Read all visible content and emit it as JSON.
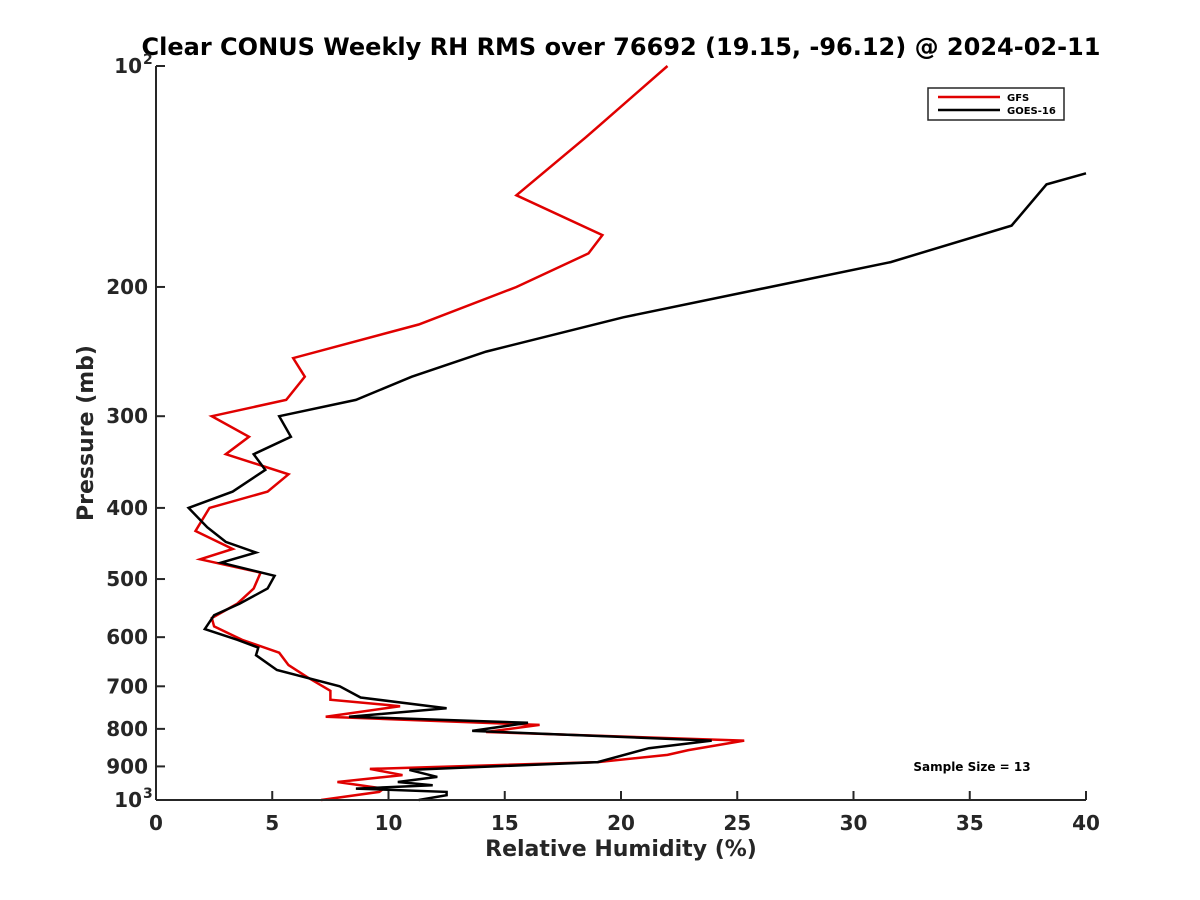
{
  "chart_data": {
    "type": "line",
    "title": "Clear CONUS Weekly RH RMS over 76692 (19.15, -96.12) @ 2024-02-11",
    "xlabel": "Relative Humidity (%)",
    "ylabel": "Pressure (mb)",
    "xlim": [
      0,
      40
    ],
    "ylim": [
      100,
      1000
    ],
    "yscale": "log",
    "yreversed": true,
    "x_ticks": [
      0,
      5,
      10,
      15,
      20,
      25,
      30,
      35,
      40
    ],
    "y_ticks": [
      {
        "value": 100,
        "label": "10",
        "sup": "2"
      },
      {
        "value": 200,
        "label": "200"
      },
      {
        "value": 300,
        "label": "300"
      },
      {
        "value": 400,
        "label": "400"
      },
      {
        "value": 500,
        "label": "500"
      },
      {
        "value": 600,
        "label": "600"
      },
      {
        "value": 700,
        "label": "700"
      },
      {
        "value": 800,
        "label": "800"
      },
      {
        "value": 900,
        "label": "900"
      },
      {
        "value": 1000,
        "label": "10",
        "sup": "3"
      }
    ],
    "legend_position": "top-right",
    "annotation": "Sample Size = 13",
    "series": [
      {
        "name": "GFS",
        "color": "#e00000",
        "points": [
          [
            22.0,
            100
          ],
          [
            18.5,
            125
          ],
          [
            15.5,
            150
          ],
          [
            19.2,
            170
          ],
          [
            18.6,
            180
          ],
          [
            15.5,
            200
          ],
          [
            11.3,
            225
          ],
          [
            5.9,
            250
          ],
          [
            6.4,
            265
          ],
          [
            5.6,
            285
          ],
          [
            2.4,
            300
          ],
          [
            4.0,
            320
          ],
          [
            3.0,
            338
          ],
          [
            5.7,
            360
          ],
          [
            4.8,
            380
          ],
          [
            2.3,
            400
          ],
          [
            1.7,
            430
          ],
          [
            3.3,
            455
          ],
          [
            1.9,
            470
          ],
          [
            4.5,
            490
          ],
          [
            4.2,
            515
          ],
          [
            3.5,
            540
          ],
          [
            2.4,
            565
          ],
          [
            2.5,
            580
          ],
          [
            3.7,
            605
          ],
          [
            5.3,
            630
          ],
          [
            5.7,
            655
          ],
          [
            6.5,
            680
          ],
          [
            7.5,
            710
          ],
          [
            7.5,
            730
          ],
          [
            10.5,
            745
          ],
          [
            7.3,
            770
          ],
          [
            16.5,
            790
          ],
          [
            14.2,
            808
          ],
          [
            25.3,
            830
          ],
          [
            22.9,
            855
          ],
          [
            22.0,
            868
          ],
          [
            19.0,
            888
          ],
          [
            9.2,
            907
          ],
          [
            10.6,
            925
          ],
          [
            7.8,
            945
          ],
          [
            9.8,
            965
          ],
          [
            9.6,
            975
          ],
          [
            7.1,
            1000
          ]
        ]
      },
      {
        "name": "GOES-16",
        "color": "#000000",
        "points": [
          [
            40.0,
            140
          ],
          [
            38.3,
            145
          ],
          [
            36.8,
            165
          ],
          [
            31.6,
            185
          ],
          [
            20.1,
            220
          ],
          [
            14.2,
            245
          ],
          [
            11.0,
            265
          ],
          [
            8.6,
            285
          ],
          [
            5.3,
            300
          ],
          [
            5.8,
            320
          ],
          [
            4.2,
            338
          ],
          [
            4.7,
            355
          ],
          [
            3.3,
            380
          ],
          [
            1.4,
            400
          ],
          [
            2.2,
            425
          ],
          [
            3.0,
            445
          ],
          [
            4.3,
            460
          ],
          [
            2.8,
            475
          ],
          [
            5.1,
            495
          ],
          [
            4.8,
            515
          ],
          [
            3.6,
            540
          ],
          [
            2.5,
            560
          ],
          [
            2.1,
            585
          ],
          [
            3.5,
            605
          ],
          [
            4.4,
            620
          ],
          [
            4.3,
            635
          ],
          [
            5.2,
            665
          ],
          [
            7.9,
            700
          ],
          [
            8.8,
            725
          ],
          [
            12.5,
            750
          ],
          [
            8.3,
            770
          ],
          [
            16.0,
            785
          ],
          [
            13.6,
            805
          ],
          [
            23.9,
            830
          ],
          [
            21.2,
            850
          ],
          [
            19.0,
            888
          ],
          [
            10.9,
            910
          ],
          [
            12.1,
            930
          ],
          [
            10.4,
            945
          ],
          [
            11.9,
            955
          ],
          [
            8.6,
            965
          ],
          [
            12.5,
            975
          ],
          [
            12.5,
            985
          ],
          [
            11.3,
            1000
          ]
        ]
      }
    ]
  }
}
